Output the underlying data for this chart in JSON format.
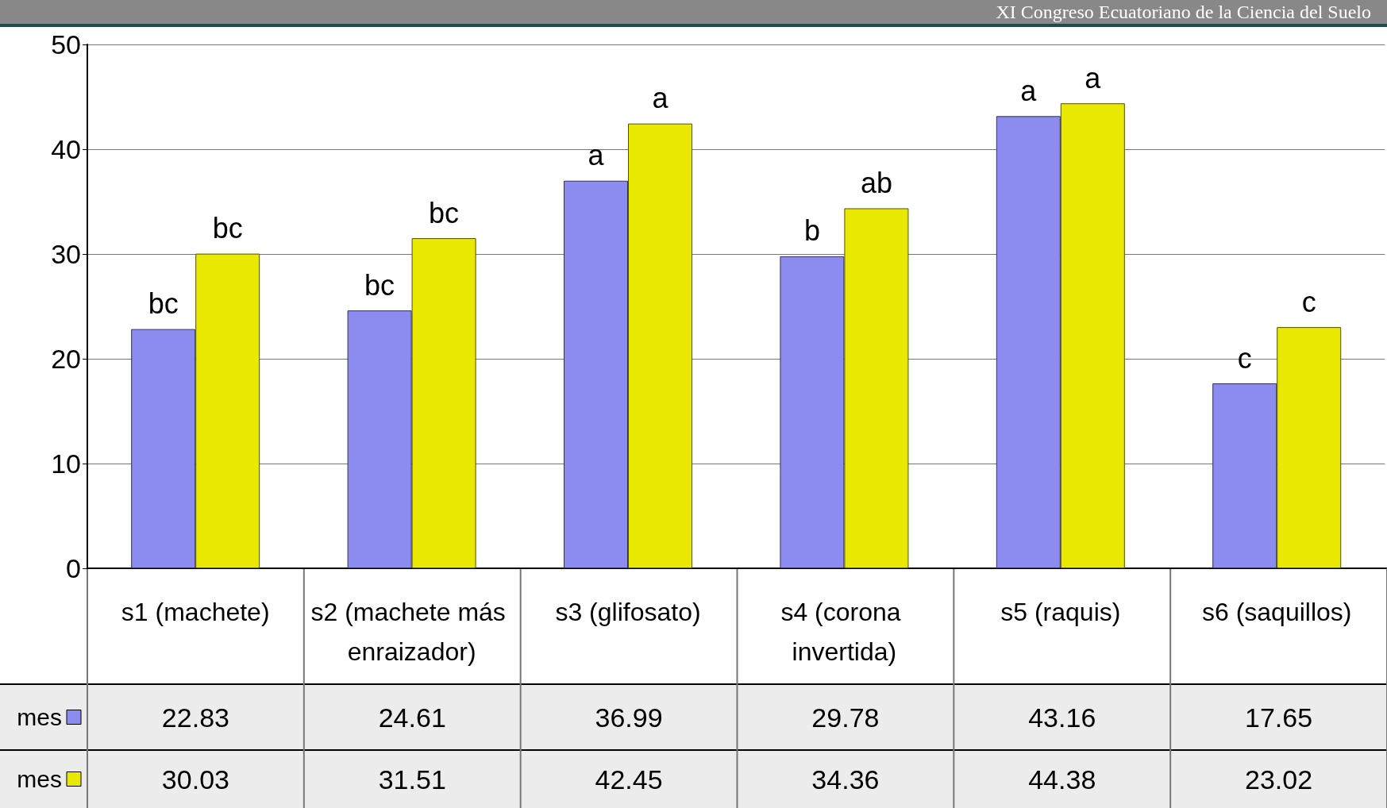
{
  "chart_data": {
    "type": "bar",
    "title": "XI Congreso Ecuatoriano de la Ciencia del Suelo",
    "categories": [
      "s1 (machete)",
      "s2 (machete más enraizador)",
      "s3 (glifosato)",
      "s4 (corona invertida)",
      "s5 (raquis)",
      "s6 (saquillos)"
    ],
    "series": [
      {
        "name": "mes",
        "color": "#8c8cf0",
        "values": [
          22.83,
          24.61,
          36.99,
          29.78,
          43.16,
          17.65
        ]
      },
      {
        "name": "mes",
        "color": "#e8e800",
        "values": [
          30.03,
          31.51,
          42.45,
          34.36,
          44.38,
          23.02
        ]
      }
    ],
    "ylim": [
      0,
      50
    ],
    "yticks": [
      0,
      10,
      20,
      30,
      40,
      50
    ],
    "grid": "y",
    "data_labels": true,
    "annotations": [
      {
        "text": "bc",
        "x": "s1 (machete)",
        "y": 22.83
      },
      {
        "text": "bc",
        "x": "s1 (machete)",
        "y": 30.03
      },
      {
        "text": "bc",
        "x": "s2 (machete más enraizador)",
        "y": 24.61
      },
      {
        "text": "bc",
        "x": "s2 (machete más enraizador)",
        "y": 31.51
      },
      {
        "text": "a",
        "x": "s3 (glifosato)",
        "y": 36.99
      },
      {
        "text": "a",
        "x": "s3 (glifosato)",
        "y": 42.45
      },
      {
        "text": "b",
        "x": "s4 (corona invertida)",
        "y": 29.78
      },
      {
        "text": "ab",
        "x": "s4 (corona invertida)",
        "y": 34.36
      },
      {
        "text": "a",
        "x": "s5 (raquis)",
        "y": 43.16
      },
      {
        "text": "a",
        "x": "s5 (raquis)",
        "y": 44.38
      },
      {
        "text": "c",
        "x": "s6 (saquillos)",
        "y": 17.65
      },
      {
        "text": "c",
        "x": "s6 (saquillos)",
        "y": 23.02
      }
    ]
  }
}
